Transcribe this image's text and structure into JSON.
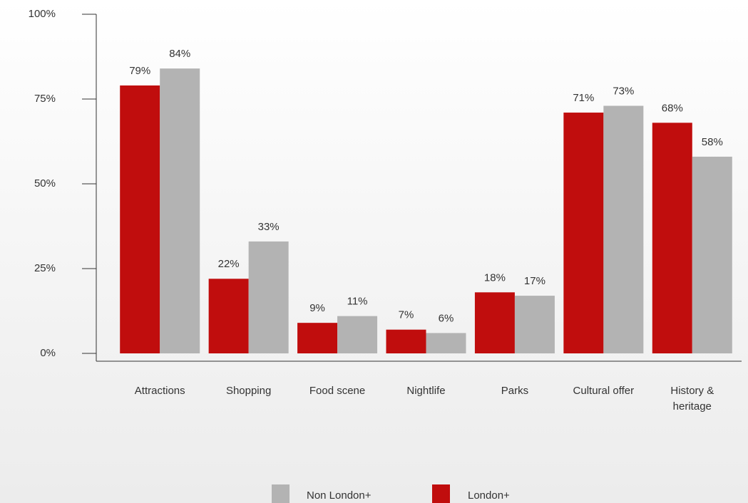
{
  "chart_data": {
    "type": "bar",
    "categories": [
      "Attractions",
      "Shopping",
      "Food scene",
      "Nightlife",
      "Parks",
      "Cultural offer",
      "History & heritage"
    ],
    "series": [
      {
        "name": "London+",
        "color": "#c00d0d",
        "values": [
          79,
          22,
          9,
          7,
          18,
          71,
          68
        ],
        "value_labels": [
          "79%",
          "22%",
          "9%",
          "7%",
          "18%",
          "71%",
          "68%"
        ]
      },
      {
        "name": "Non London+",
        "color": "#b3b3b3",
        "values": [
          84,
          33,
          11,
          6,
          17,
          73,
          58
        ],
        "value_labels": [
          "84%",
          "33%",
          "11%",
          "6%",
          "17%",
          "73%",
          "58%"
        ]
      }
    ],
    "ylim": [
      0,
      100
    ],
    "yticks": [
      {
        "value": 0,
        "label": "0%"
      },
      {
        "value": 25,
        "label": "25%"
      },
      {
        "value": 50,
        "label": "50%"
      },
      {
        "value": 75,
        "label": "75%"
      },
      {
        "value": 100,
        "label": "100%"
      }
    ]
  }
}
